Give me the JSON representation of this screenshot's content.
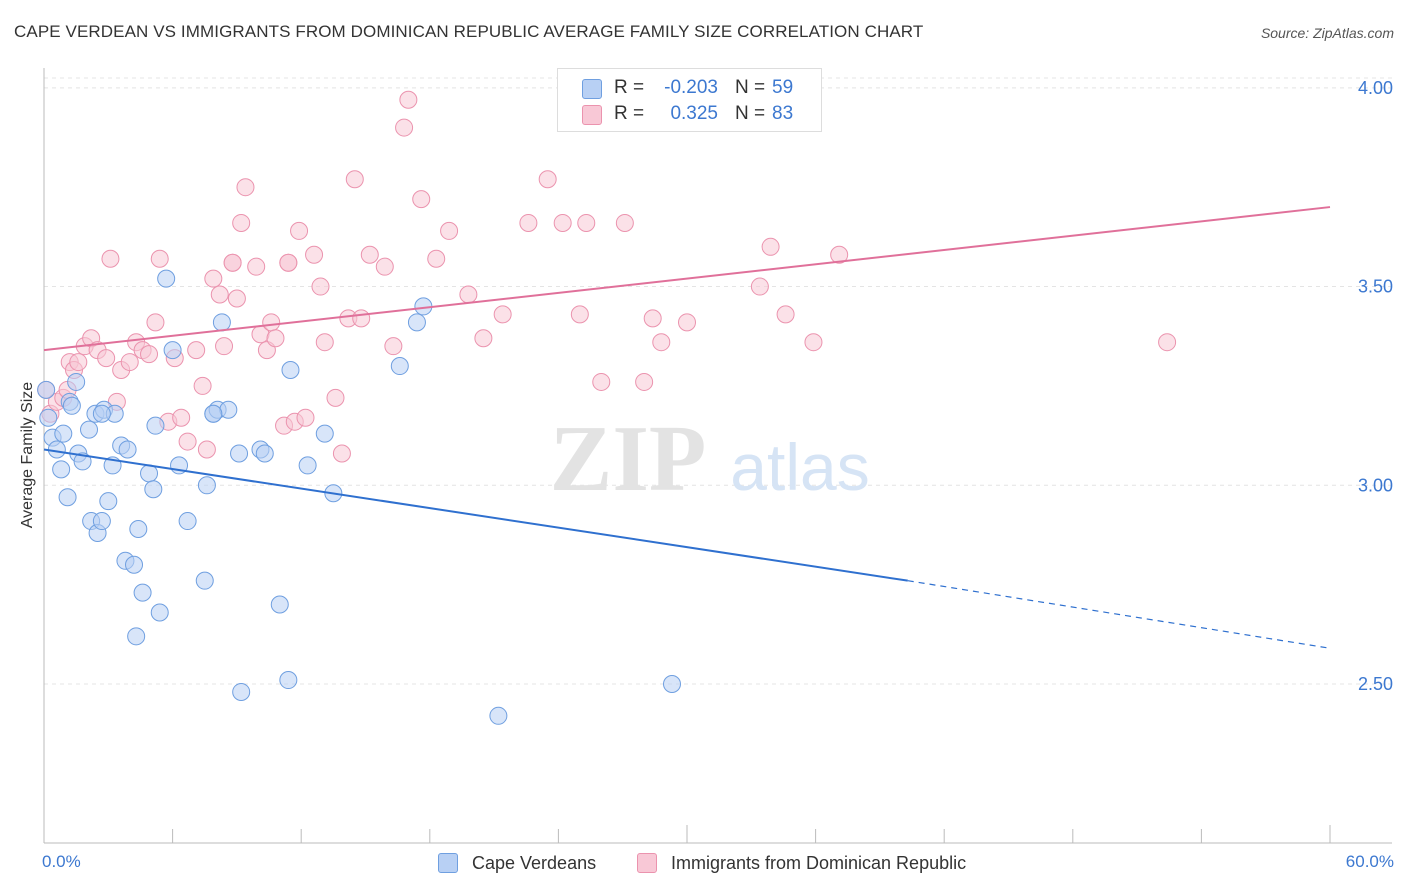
{
  "title": "CAPE VERDEAN VS IMMIGRANTS FROM DOMINICAN REPUBLIC AVERAGE FAMILY SIZE CORRELATION CHART",
  "source": "Source: ZipAtlas.com",
  "watermark": {
    "zip": "ZIP",
    "atlas": "atlas"
  },
  "legend": {
    "r_label": "R =",
    "n_label": "N =",
    "rows": [
      {
        "r": "-0.203",
        "n": "59"
      },
      {
        "r": "0.325",
        "n": "83"
      }
    ]
  },
  "colors": {
    "blue_fill": "#b8d0f4",
    "blue_stroke": "#6f9fe0",
    "blue_line": "#2f70cf",
    "pink_fill": "#f8c8d6",
    "pink_stroke": "#eb93ae",
    "pink_line": "#e0709a",
    "tick_label": "#3c78d0"
  },
  "chart_data": {
    "type": "scatter",
    "title": "CAPE VERDEAN VS IMMIGRANTS FROM DOMINICAN REPUBLIC AVERAGE FAMILY SIZE CORRELATION CHART",
    "xlabel": "",
    "ylabel": "Average Family Size",
    "xlim": [
      0,
      60
    ],
    "ylim": [
      2.1,
      4.07
    ],
    "x_tick_labels": [
      "0.0%",
      "60.0%"
    ],
    "y_ticks": [
      2.5,
      3.0,
      3.5,
      4.0
    ],
    "y_tick_labels": [
      "2.50",
      "3.00",
      "3.50",
      "4.00"
    ],
    "grid": true,
    "legend_position": "bottom",
    "series": [
      {
        "name": "Cape Verdeans",
        "trend": {
          "x0": 0.0,
          "y0": 3.09,
          "x1": 40.3,
          "y1": 2.76,
          "dash_to_x": 60.0,
          "dash_to_y": 2.59
        },
        "points": [
          [
            0.1,
            3.24
          ],
          [
            0.2,
            3.17
          ],
          [
            0.4,
            3.12
          ],
          [
            0.6,
            3.09
          ],
          [
            0.8,
            3.04
          ],
          [
            0.9,
            3.13
          ],
          [
            1.1,
            2.97
          ],
          [
            1.2,
            3.21
          ],
          [
            1.3,
            3.2
          ],
          [
            1.5,
            3.26
          ],
          [
            1.6,
            3.08
          ],
          [
            1.8,
            3.06
          ],
          [
            2.1,
            3.14
          ],
          [
            2.2,
            2.91
          ],
          [
            2.4,
            3.18
          ],
          [
            2.5,
            2.88
          ],
          [
            2.7,
            2.91
          ],
          [
            2.8,
            3.19
          ],
          [
            3.0,
            2.96
          ],
          [
            3.2,
            3.05
          ],
          [
            3.3,
            3.18
          ],
          [
            3.6,
            3.1
          ],
          [
            3.9,
            3.09
          ],
          [
            3.8,
            2.81
          ],
          [
            4.2,
            2.8
          ],
          [
            4.3,
            2.62
          ],
          [
            4.4,
            2.89
          ],
          [
            4.6,
            2.73
          ],
          [
            4.9,
            3.03
          ],
          [
            5.1,
            2.99
          ],
          [
            5.2,
            3.15
          ],
          [
            5.4,
            2.68
          ],
          [
            5.7,
            3.52
          ],
          [
            6.0,
            3.34
          ],
          [
            6.3,
            3.05
          ],
          [
            6.7,
            2.91
          ],
          [
            7.5,
            2.76
          ],
          [
            7.6,
            3.0
          ],
          [
            7.9,
            3.18
          ],
          [
            8.1,
            3.19
          ],
          [
            8.3,
            3.41
          ],
          [
            8.6,
            3.19
          ],
          [
            9.1,
            3.08
          ],
          [
            9.2,
            2.48
          ],
          [
            10.1,
            3.09
          ],
          [
            10.3,
            3.08
          ],
          [
            11.0,
            2.7
          ],
          [
            11.4,
            2.51
          ],
          [
            11.5,
            3.29
          ],
          [
            12.3,
            3.05
          ],
          [
            13.1,
            3.13
          ],
          [
            13.5,
            2.98
          ],
          [
            16.6,
            3.3
          ],
          [
            17.4,
            3.41
          ],
          [
            17.7,
            3.45
          ],
          [
            21.2,
            2.42
          ],
          [
            29.3,
            2.5
          ],
          [
            7.9,
            3.18
          ],
          [
            2.7,
            3.18
          ]
        ]
      },
      {
        "name": "Immigrants from Dominican Republic",
        "trend": {
          "x0": 0.0,
          "y0": 3.34,
          "x1": 60.0,
          "y1": 3.7
        },
        "points": [
          [
            0.1,
            3.24
          ],
          [
            0.3,
            3.18
          ],
          [
            0.6,
            3.21
          ],
          [
            0.9,
            3.22
          ],
          [
            1.1,
            3.24
          ],
          [
            1.2,
            3.31
          ],
          [
            1.4,
            3.29
          ],
          [
            1.6,
            3.31
          ],
          [
            1.9,
            3.35
          ],
          [
            2.2,
            3.37
          ],
          [
            2.5,
            3.34
          ],
          [
            2.9,
            3.32
          ],
          [
            3.1,
            3.57
          ],
          [
            3.4,
            3.21
          ],
          [
            3.6,
            3.29
          ],
          [
            4.0,
            3.31
          ],
          [
            4.3,
            3.36
          ],
          [
            4.6,
            3.34
          ],
          [
            4.9,
            3.33
          ],
          [
            5.2,
            3.41
          ],
          [
            5.4,
            3.57
          ],
          [
            5.8,
            3.16
          ],
          [
            6.1,
            3.32
          ],
          [
            6.4,
            3.17
          ],
          [
            6.7,
            3.11
          ],
          [
            7.1,
            3.34
          ],
          [
            7.4,
            3.25
          ],
          [
            7.6,
            3.09
          ],
          [
            7.9,
            3.52
          ],
          [
            8.2,
            3.48
          ],
          [
            8.4,
            3.35
          ],
          [
            8.8,
            3.56
          ],
          [
            9.0,
            3.47
          ],
          [
            9.2,
            3.66
          ],
          [
            9.4,
            3.75
          ],
          [
            9.9,
            3.55
          ],
          [
            10.1,
            3.38
          ],
          [
            10.4,
            3.34
          ],
          [
            10.6,
            3.41
          ],
          [
            10.8,
            3.37
          ],
          [
            11.2,
            3.15
          ],
          [
            11.4,
            3.56
          ],
          [
            11.7,
            3.16
          ],
          [
            11.9,
            3.64
          ],
          [
            12.2,
            3.17
          ],
          [
            12.6,
            3.58
          ],
          [
            12.9,
            3.5
          ],
          [
            13.1,
            3.36
          ],
          [
            13.6,
            3.22
          ],
          [
            13.9,
            3.08
          ],
          [
            14.2,
            3.42
          ],
          [
            14.5,
            3.77
          ],
          [
            14.8,
            3.42
          ],
          [
            15.2,
            3.58
          ],
          [
            15.9,
            3.55
          ],
          [
            16.3,
            3.35
          ],
          [
            16.8,
            3.9
          ],
          [
            17.0,
            3.97
          ],
          [
            17.6,
            3.72
          ],
          [
            18.3,
            3.57
          ],
          [
            18.9,
            3.64
          ],
          [
            19.8,
            3.48
          ],
          [
            20.5,
            3.37
          ],
          [
            21.4,
            3.43
          ],
          [
            22.6,
            3.66
          ],
          [
            23.5,
            3.77
          ],
          [
            24.2,
            3.66
          ],
          [
            25.0,
            3.43
          ],
          [
            25.3,
            3.66
          ],
          [
            26.0,
            3.26
          ],
          [
            27.1,
            3.66
          ],
          [
            28.0,
            3.26
          ],
          [
            28.4,
            3.42
          ],
          [
            28.8,
            3.36
          ],
          [
            30.0,
            3.41
          ],
          [
            33.4,
            3.5
          ],
          [
            33.9,
            3.6
          ],
          [
            34.6,
            3.43
          ],
          [
            35.9,
            3.36
          ],
          [
            37.1,
            3.58
          ],
          [
            52.4,
            3.36
          ],
          [
            11.4,
            3.56
          ],
          [
            8.8,
            3.56
          ]
        ]
      }
    ]
  }
}
